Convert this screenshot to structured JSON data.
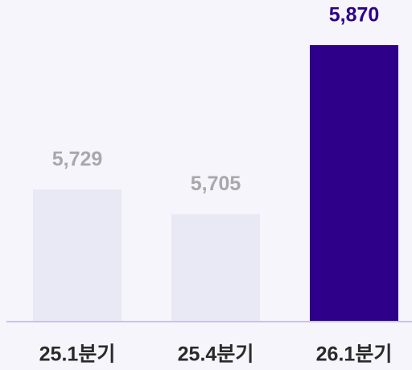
{
  "chart_data": {
    "type": "bar",
    "categories": [
      "25.1분기",
      "25.4분기",
      "26.1분기"
    ],
    "values": [
      5729,
      5705,
      5870
    ],
    "value_labels": [
      "5,729",
      "5,705",
      "5,870"
    ],
    "colors": [
      "#e9e8f5",
      "#e9e8f5",
      "#2e0089"
    ],
    "label_colors": [
      "#a8a8ac",
      "#a8a8ac",
      "#2e0089"
    ],
    "ylim": [
      5600,
      5870
    ]
  }
}
